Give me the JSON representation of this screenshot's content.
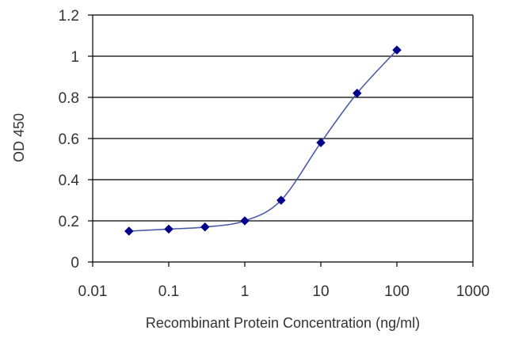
{
  "chart_data": {
    "type": "line",
    "title": "",
    "xlabel": "Recombinant Protein Concentration (ng/ml)",
    "ylabel": "OD 450",
    "x_scale": "log",
    "xlim": [
      0.01,
      1000
    ],
    "ylim": [
      0,
      1.2
    ],
    "x_ticks": [
      0.01,
      0.1,
      1,
      10,
      100,
      1000
    ],
    "x_tick_labels": [
      "0.01",
      "0.1",
      "1",
      "10",
      "100",
      "1000"
    ],
    "y_ticks": [
      0,
      0.2,
      0.4,
      0.6,
      0.8,
      1,
      1.2
    ],
    "y_tick_labels": [
      "0",
      "0.2",
      "0.4",
      "0.6",
      "0.8",
      "1",
      "1.2"
    ],
    "grid": "horizontal",
    "legend": "none",
    "series": [
      {
        "color": "#00008b",
        "line_color": "#4a5aa8",
        "marker": "diamond",
        "x": [
          0.03,
          0.1,
          0.3,
          1,
          3,
          10,
          30,
          100
        ],
        "y": [
          0.15,
          0.16,
          0.17,
          0.2,
          0.3,
          0.58,
          0.82,
          1.03
        ]
      }
    ]
  }
}
